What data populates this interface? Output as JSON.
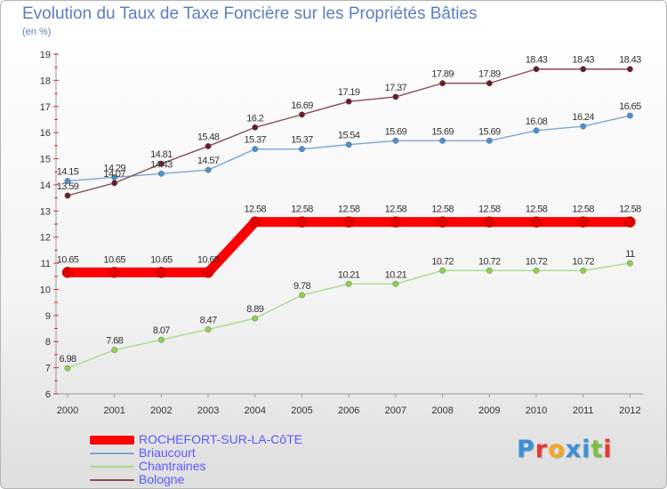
{
  "header": {
    "title": "Evolution du Taux de Taxe Foncière sur les Propriétés Bâties",
    "unit": "(en %)"
  },
  "logo": {
    "text": "Proxiti",
    "letter_colors": [
      "#3a8fd8",
      "#e8382f",
      "#f5a623",
      "#3a8fd8",
      "#3a8fd8",
      "#7cc142",
      "#e8382f"
    ]
  },
  "chart_data": {
    "type": "line",
    "title": "Evolution du Taux de Taxe Foncière sur les Propriétés Bâties",
    "ylabel": "(en %)",
    "xlabel": "",
    "x": [
      "2000",
      "2001",
      "2002",
      "2003",
      "2004",
      "2005",
      "2006",
      "2007",
      "2008",
      "2009",
      "2010",
      "2011",
      "2012"
    ],
    "ylim": [
      6,
      19
    ],
    "yticks": [
      "6",
      "7",
      "8",
      "9",
      "10",
      "11",
      "12",
      "13",
      "14",
      "15",
      "16",
      "17",
      "18",
      "19"
    ],
    "grid": "none",
    "legend_position": "bottom-left",
    "series": [
      {
        "name": "ROCHEFORT-SUR-LA-CôTE",
        "color": "#ff0000",
        "marker": "#e00000",
        "values": [
          10.65,
          10.65,
          10.65,
          10.65,
          12.58,
          12.58,
          12.58,
          12.58,
          12.58,
          12.58,
          12.58,
          12.58,
          12.58
        ],
        "labels": [
          "10.65",
          "10.65",
          "10.65",
          "10.65",
          "12.58",
          "12.58",
          "12.58",
          "12.58",
          "12.58",
          "12.58",
          "12.58",
          "12.58",
          "12.58"
        ]
      },
      {
        "name": "Briaucourt",
        "color": "#78a7d4",
        "marker": "#4a90d2",
        "values": [
          14.15,
          14.29,
          14.43,
          14.57,
          15.37,
          15.37,
          15.54,
          15.69,
          15.69,
          15.69,
          16.08,
          16.24,
          16.65
        ],
        "labels": [
          "14.15",
          "14.29",
          "14.43",
          "14.57",
          "15.37",
          "15.37",
          "15.54",
          "15.69",
          "15.69",
          "15.69",
          "16.08",
          "16.24",
          "16.65"
        ]
      },
      {
        "name": "Chantraines",
        "color": "#a8dc8c",
        "marker": "#8fd14f",
        "values": [
          6.98,
          7.68,
          8.07,
          8.47,
          8.89,
          9.78,
          10.21,
          10.21,
          10.72,
          10.72,
          10.72,
          10.72,
          11
        ],
        "labels": [
          "6.98",
          "7.68",
          "8.07",
          "8.47",
          "8.89",
          "9.78",
          "10.21",
          "10.21",
          "10.72",
          "10.72",
          "10.72",
          "10.72",
          "11"
        ]
      },
      {
        "name": "Bologne",
        "color": "#8a4a52",
        "marker": "#6b1c2a",
        "values": [
          13.59,
          14.07,
          14.81,
          15.48,
          16.2,
          16.69,
          17.19,
          17.37,
          17.89,
          17.89,
          18.43,
          18.43,
          18.43
        ],
        "labels": [
          "13.59",
          "14.07",
          "14.81",
          "15.48",
          "16.2",
          "16.69",
          "17.19",
          "17.37",
          "17.89",
          "17.89",
          "18.43",
          "18.43",
          "18.43"
        ]
      }
    ]
  }
}
